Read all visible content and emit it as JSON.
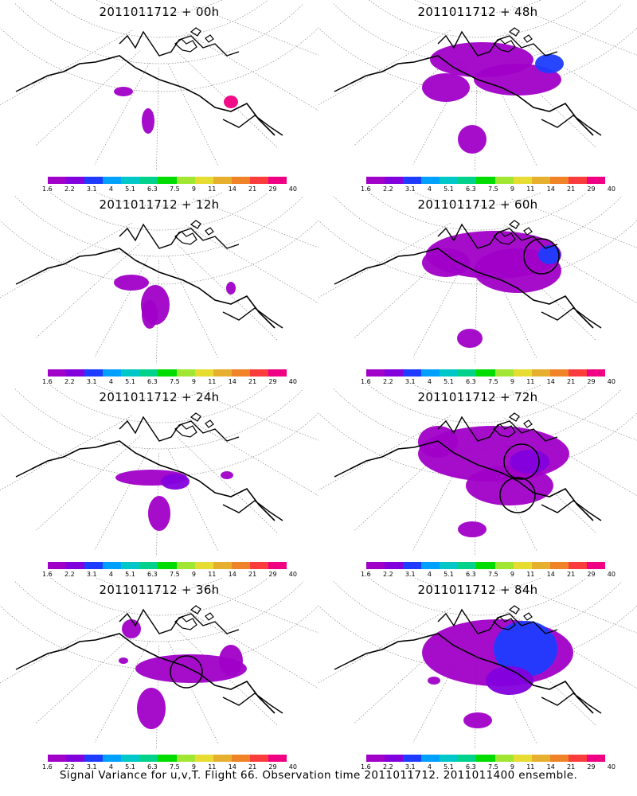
{
  "chart_data": {
    "type": "heatmap",
    "colorbar": {
      "levels": [
        "1.6",
        "2.2",
        "3.1",
        "4",
        "5.1",
        "6.3",
        "7.5",
        "9",
        "11",
        "14",
        "21",
        "29",
        "40"
      ],
      "colors": [
        "#a000c8",
        "#8200dc",
        "#1e3cff",
        "#00a0ff",
        "#00c8c8",
        "#00d28c",
        "#00dc00",
        "#a0e632",
        "#e6dc32",
        "#e6af2d",
        "#f08228",
        "#fa3c3c",
        "#f00082"
      ]
    },
    "panels": [
      {
        "title": "2011011712 + 00h",
        "lead_hours": 0
      },
      {
        "title": "2011011712 + 48h",
        "lead_hours": 48
      },
      {
        "title": "2011011712 + 12h",
        "lead_hours": 12
      },
      {
        "title": "2011011712 + 60h",
        "lead_hours": 60
      },
      {
        "title": "2011011712 + 24h",
        "lead_hours": 24
      },
      {
        "title": "2011011712 + 72h",
        "lead_hours": 72
      },
      {
        "title": "2011011712 + 36h",
        "lead_hours": 36
      },
      {
        "title": "2011011712 + 84h",
        "lead_hours": 84
      }
    ]
  },
  "footer": "Signal Variance for u,v,T. Flight 66. Observation time 2011011712. 2011011400 ensemble."
}
